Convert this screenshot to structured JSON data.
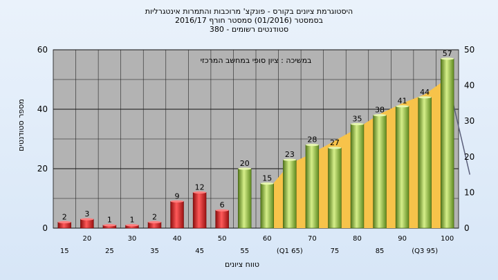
{
  "title": {
    "line1": "היסטוגרמת ציונים בקורס - פונקצ' מרוכבות והתמרות אינטגרליות",
    "line2": "בסמסטר  (01/2016)  סמסטר חורף  2016/17",
    "line3": "סטודנטים רשומים - 380"
  },
  "chart_data": {
    "type": "bar",
    "annotation": "במשיכה : ציון סופי במחשב המרכזי",
    "xlabel": "טווח ציונים",
    "ylabel": "מספר סטודנטים",
    "ylim": [
      0,
      60
    ],
    "y_ticks": [
      0,
      20,
      40,
      60
    ],
    "y2lim": [
      0,
      50
    ],
    "y2_ticks": [
      0,
      10,
      20,
      30,
      40,
      50
    ],
    "grid": true,
    "categories": [
      "15",
      "20",
      "25",
      "30",
      "35",
      "40",
      "45",
      "50",
      "55",
      "60",
      "(Q1 65)",
      "70",
      "75",
      "80",
      "85",
      "90",
      "(Q3 95)",
      "100"
    ],
    "values": [
      2,
      3,
      1,
      1,
      2,
      9,
      12,
      6,
      20,
      15,
      23,
      28,
      27,
      35,
      38,
      41,
      44,
      57
    ],
    "bar_colors": [
      "#d42020",
      "#d42020",
      "#d42020",
      "#d42020",
      "#d42020",
      "#d42020",
      "#d42020",
      "#d42020",
      "#8cb83a",
      "#8cb83a",
      "#8cb83a",
      "#8cb83a",
      "#8cb83a",
      "#8cb83a",
      "#8cb83a",
      "#8cb83a",
      "#8cb83a",
      "#8cb83a"
    ],
    "area_series": {
      "x_from": "60",
      "x_to": "(Q3 95)",
      "values_secondary_axis": [
        10.5,
        18,
        21,
        24.5,
        28,
        32,
        35,
        37.5,
        42
      ]
    },
    "colors": {
      "plot_bg": "#b3b3b3",
      "area": "#f7c34a",
      "line": "#5a5f7a"
    }
  }
}
